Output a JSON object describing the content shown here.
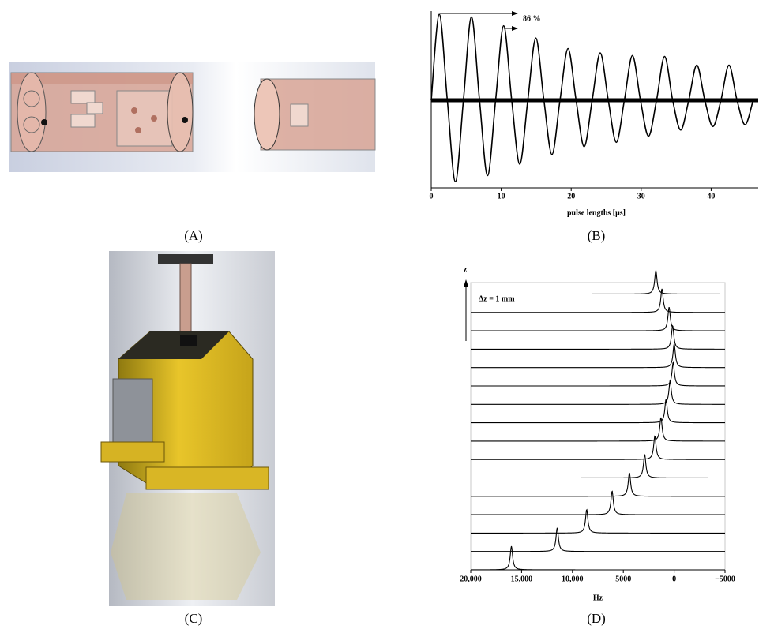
{
  "panel_labels": [
    "(A)",
    "(B)",
    "(C)",
    "(D)"
  ],
  "chart_data": [
    {
      "type": "line",
      "x": [
        0,
        1.15,
        2.3,
        3.45,
        4.6,
        5.75,
        6.9,
        8.05,
        9.2,
        10.35,
        11.5,
        12.65,
        13.8,
        14.95,
        16.1,
        17.25,
        18.4,
        19.55,
        20.7,
        21.85,
        23,
        24.15,
        25.3,
        26.45,
        27.6,
        28.75,
        29.9,
        31.05,
        32.2,
        33.35,
        34.5,
        35.65,
        36.8,
        37.95,
        39.1,
        40.25,
        41.4,
        42.55,
        43.7,
        44.85,
        46
      ],
      "series": [
        {
          "color": "#000000",
          "values": [
            0,
            0.98,
            0,
            -0.93,
            0,
            0.95,
            0,
            -0.86,
            0,
            0.85,
            0,
            -0.73,
            0,
            0.71,
            0,
            -0.62,
            0,
            0.59,
            0,
            -0.53,
            0,
            0.54,
            0,
            -0.48,
            0,
            0.51,
            0,
            -0.41,
            0,
            0.5,
            0,
            -0.34,
            0,
            0.4,
            0,
            -0.3,
            0,
            0.4,
            0,
            -0.28,
            0
          ]
        }
      ],
      "xlim": [
        0,
        46.5
      ],
      "ylim": [
        -1,
        1
      ],
      "xticks": [
        0,
        10,
        20,
        30,
        40
      ],
      "xlabel": "pulse lengths [μs]",
      "annotation": "86 %"
    },
    {
      "type": "waterfall",
      "values": [
        16000,
        11500,
        8600,
        6100,
        4400,
        2900,
        1900,
        1300,
        800,
        400,
        100,
        0,
        150,
        500,
        1200,
        1800
      ],
      "color": "#000000",
      "xlim": [
        20000,
        -5000
      ],
      "xticks": [
        {
          "value": 20000,
          "label": "20,000"
        },
        {
          "value": 15000,
          "label": "15,000"
        },
        {
          "value": 10000,
          "label": "10,000"
        },
        5000,
        0,
        {
          "value": -5000,
          "label": "−5000"
        }
      ],
      "xlabel": "Hz",
      "ylabel": "z",
      "annotation": "Δz = 1 mm"
    }
  ]
}
